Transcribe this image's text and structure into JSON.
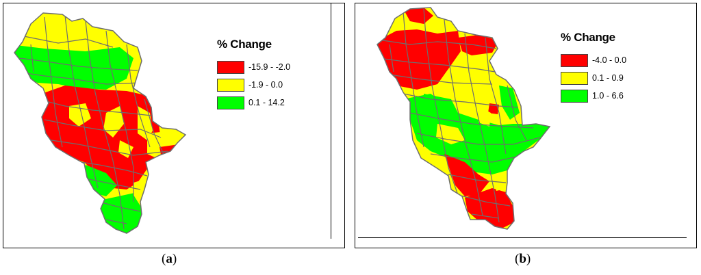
{
  "panels": [
    {
      "id": "a",
      "legend": {
        "title": "% Change",
        "items": [
          {
            "label": "-15.9 - -2.0",
            "color": "#ff0000"
          },
          {
            "label": "-1.9 - 0.0",
            "color": "#ffff00"
          },
          {
            "label": "0.1 - 14.2",
            "color": "#00ff00"
          }
        ]
      },
      "caption_open": "(",
      "caption_letter": "a",
      "caption_close": ")"
    },
    {
      "id": "b",
      "legend": {
        "title": "% Change",
        "items": [
          {
            "label": "-4.0 - 0.0",
            "color": "#ff0000"
          },
          {
            "label": "0.1 - 0.9",
            "color": "#ffff00"
          },
          {
            "label": "1.0 - 6.6",
            "color": "#00ff00"
          }
        ]
      },
      "caption_open": "(",
      "caption_letter": "b",
      "caption_close": ")"
    }
  ],
  "colors": {
    "red": "#ff0000",
    "yellow": "#ffff00",
    "green": "#00ff00",
    "boundary": "#6e6e6e"
  }
}
